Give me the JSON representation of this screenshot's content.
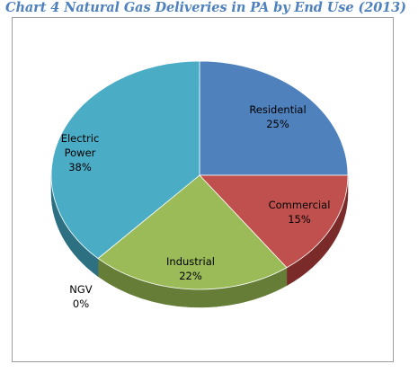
{
  "chart_data": {
    "type": "pie",
    "title": "Chart 4 Natural Gas Deliveries in PA by End Use (2013)",
    "slices": [
      {
        "name": "Residential",
        "percent_label": "25%",
        "value": 25,
        "color": "#4f81bd",
        "side_color": "#34557e"
      },
      {
        "name": "Commercial",
        "percent_label": "15%",
        "value": 15,
        "color": "#c0504d",
        "side_color": "#7a2b29"
      },
      {
        "name": "Industrial",
        "percent_label": "22%",
        "value": 22,
        "color": "#9bbb59",
        "side_color": "#667d37"
      },
      {
        "name": "NGV",
        "percent_label": "0%",
        "value": 0,
        "color": "#8064a2",
        "side_color": "#513e68"
      },
      {
        "name": "Electric Power",
        "percent_label": "38%",
        "value": 38,
        "color": "#4bacc6",
        "side_color": "#2c7082"
      }
    ],
    "legend": "none"
  }
}
